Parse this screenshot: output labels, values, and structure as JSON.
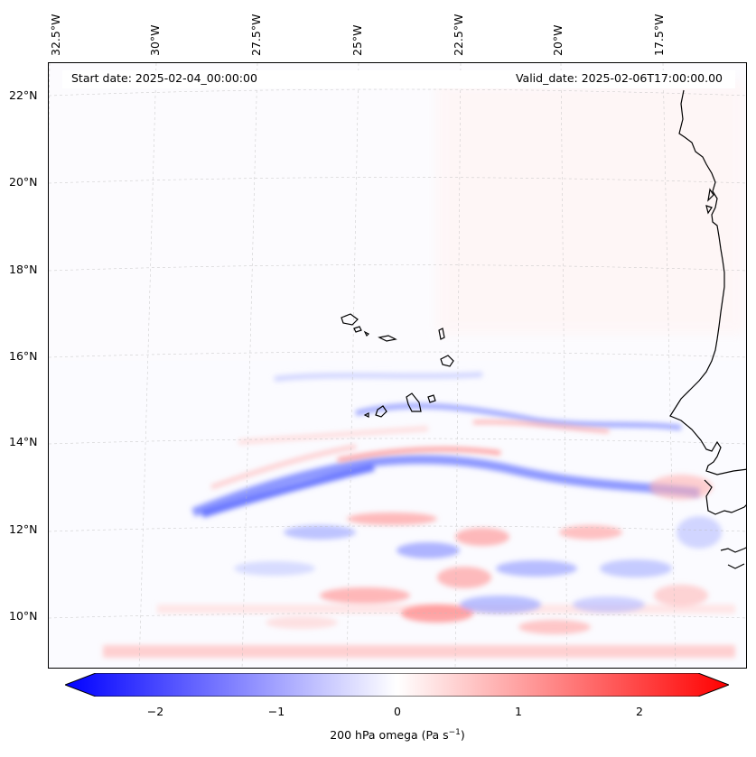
{
  "map": {
    "title_start": "Start date: 2025-02-04_00:00:00",
    "title_valid": "Valid_date: 2025-02-06T17:00:00.00",
    "lon_labels": [
      "32.5°W",
      "30°W",
      "27.5°W",
      "25°W",
      "22.5°W",
      "20°W",
      "17.5°W"
    ],
    "lat_labels": [
      "22°N",
      "20°N",
      "18°N",
      "16°N",
      "14°N",
      "12°N",
      "10°N"
    ],
    "variable": "200 hPa omega"
  },
  "colorbar": {
    "ticks": [
      "−2",
      "−1",
      "0",
      "1",
      "2"
    ],
    "range": [
      -2.5,
      2.5
    ],
    "label_prefix": "200 hPa omega (Pa s",
    "label_exp": "−1",
    "label_suffix": ")",
    "color_min": "#0000ff",
    "color_mid": "#ffffff",
    "color_max": "#ff0000"
  }
}
